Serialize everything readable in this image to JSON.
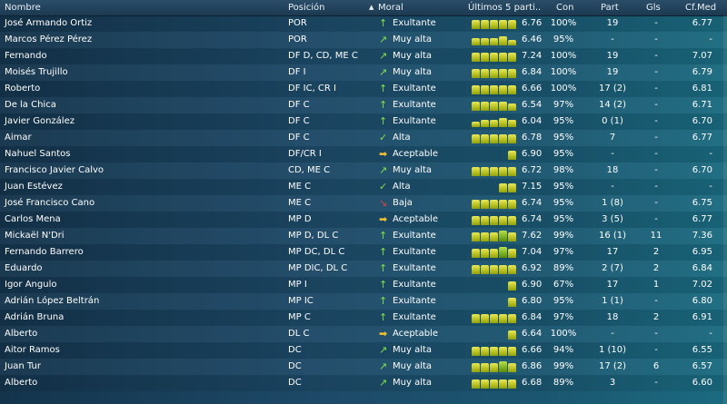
{
  "headers": {
    "nombre": "Nombre",
    "posicion": "Posición",
    "moral": "Moral",
    "ultimos": "Últimos 5 parti..",
    "con": "Con",
    "part": "Part",
    "gls": "Gls",
    "cfmed": "Cf.Med"
  },
  "colors": {
    "up": "#7ee04a",
    "slight_up": "#7ee04a",
    "flat": "#f0c030",
    "down": "#e04040"
  },
  "rows": [
    {
      "name": "José Armando Ortiz",
      "pos": "POR",
      "arrow": "up",
      "moral": "Exultante",
      "bars": [
        5,
        5,
        5,
        5,
        5
      ],
      "avg": "6.76",
      "con": "100%",
      "part": "19",
      "gls": "-",
      "cf": "6.77"
    },
    {
      "name": "Marcos Pérez Pérez",
      "pos": "POR",
      "arrow": "slight_up",
      "moral": "Muy alta",
      "bars": [
        4,
        4,
        4,
        5,
        3
      ],
      "avg": "6.46",
      "con": "95%",
      "part": "-",
      "gls": "-",
      "cf": "-"
    },
    {
      "name": "Fernando",
      "pos": "DF D, CD, ME C",
      "arrow": "slight_up",
      "moral": "Muy alta",
      "bars": [
        5,
        5,
        5,
        5,
        5
      ],
      "avg": "7.24",
      "con": "100%",
      "part": "19",
      "gls": "-",
      "cf": "7.07"
    },
    {
      "name": "Moisés Trujillo",
      "pos": "DF I",
      "arrow": "slight_up",
      "moral": "Muy alta",
      "bars": [
        5,
        5,
        5,
        5,
        5
      ],
      "avg": "6.84",
      "con": "100%",
      "part": "19",
      "gls": "-",
      "cf": "6.79"
    },
    {
      "name": "Roberto",
      "pos": "DF IC, CR I",
      "arrow": "up",
      "moral": "Exultante",
      "bars": [
        5,
        5,
        5,
        5,
        5
      ],
      "avg": "6.66",
      "con": "100%",
      "part": "17 (2)",
      "gls": "-",
      "cf": "6.81"
    },
    {
      "name": "De la Chica",
      "pos": "DF C",
      "arrow": "up",
      "moral": "Exultante",
      "bars": [
        5,
        5,
        5,
        5,
        4
      ],
      "avg": "6.54",
      "con": "97%",
      "part": "14 (2)",
      "gls": "-",
      "cf": "6.71"
    },
    {
      "name": "Javier González",
      "pos": "DF C",
      "arrow": "up",
      "moral": "Exultante",
      "bars": [
        3,
        4,
        4,
        5,
        4
      ],
      "avg": "6.04",
      "con": "95%",
      "part": "0 (1)",
      "gls": "-",
      "cf": "6.70"
    },
    {
      "name": "Aimar",
      "pos": "DF C",
      "arrow": "check",
      "moral": "Alta",
      "bars": [
        5,
        5,
        5,
        5,
        5
      ],
      "avg": "6.78",
      "con": "95%",
      "part": "7",
      "gls": "-",
      "cf": "6.77"
    },
    {
      "name": "Nahuel Santos",
      "pos": "DF/CR I",
      "arrow": "flat",
      "moral": "Aceptable",
      "bars": [
        0,
        0,
        0,
        0,
        5
      ],
      "avg": "6.90",
      "con": "95%",
      "part": "-",
      "gls": "-",
      "cf": "-"
    },
    {
      "name": "Francisco Javier Calvo",
      "pos": "CD, ME C",
      "arrow": "slight_up",
      "moral": "Muy alta",
      "bars": [
        5,
        5,
        5,
        5,
        5
      ],
      "avg": "6.72",
      "con": "98%",
      "part": "18",
      "gls": "-",
      "cf": "6.70"
    },
    {
      "name": "Juan Estévez",
      "pos": "ME C",
      "arrow": "check",
      "moral": "Alta",
      "bars": [
        0,
        0,
        0,
        5,
        5
      ],
      "avg": "7.15",
      "con": "95%",
      "part": "-",
      "gls": "-",
      "cf": "-"
    },
    {
      "name": "José Francisco Cano",
      "pos": "ME C",
      "arrow": "down",
      "moral": "Baja",
      "bars": [
        5,
        5,
        5,
        5,
        5
      ],
      "avg": "6.74",
      "con": "95%",
      "part": "1 (8)",
      "gls": "-",
      "cf": "6.75"
    },
    {
      "name": "Carlos Mena",
      "pos": "MP D",
      "arrow": "flat",
      "moral": "Aceptable",
      "bars": [
        5,
        5,
        5,
        5,
        5
      ],
      "avg": "6.74",
      "con": "95%",
      "part": "3 (5)",
      "gls": "-",
      "cf": "6.77"
    },
    {
      "name": "Mickaël N'Dri",
      "pos": "MP D, DL C",
      "arrow": "up",
      "moral": "Exultante",
      "bars": [
        5,
        5,
        5,
        6,
        5
      ],
      "avg": "7.62",
      "con": "99%",
      "part": "16 (1)",
      "gls": "11",
      "cf": "7.36"
    },
    {
      "name": "Fernando Barrero",
      "pos": "MP DC, DL C",
      "arrow": "up",
      "moral": "Exultante",
      "bars": [
        5,
        5,
        5,
        6,
        5
      ],
      "avg": "7.04",
      "con": "97%",
      "part": "17",
      "gls": "2",
      "cf": "6.95"
    },
    {
      "name": "Eduardo",
      "pos": "MP DIC, DL C",
      "arrow": "up",
      "moral": "Exultante",
      "bars": [
        5,
        5,
        5,
        5,
        5
      ],
      "avg": "6.92",
      "con": "89%",
      "part": "2 (7)",
      "gls": "2",
      "cf": "6.84"
    },
    {
      "name": "Igor Angulo",
      "pos": "MP I",
      "arrow": "up",
      "moral": "Exultante",
      "bars": [
        0,
        0,
        0,
        0,
        5
      ],
      "avg": "6.90",
      "con": "67%",
      "part": "17",
      "gls": "1",
      "cf": "7.02"
    },
    {
      "name": "Adrián López Beltrán",
      "pos": "MP IC",
      "arrow": "up",
      "moral": "Exultante",
      "bars": [
        0,
        0,
        0,
        0,
        5
      ],
      "avg": "6.80",
      "con": "95%",
      "part": "1 (1)",
      "gls": "-",
      "cf": "6.80"
    },
    {
      "name": "Adrián Bruna",
      "pos": "MP C",
      "arrow": "up",
      "moral": "Exultante",
      "bars": [
        5,
        5,
        5,
        5,
        5
      ],
      "avg": "6.84",
      "con": "97%",
      "part": "18",
      "gls": "2",
      "cf": "6.91"
    },
    {
      "name": "Alberto",
      "pos": "DL C",
      "arrow": "flat",
      "moral": "Aceptable",
      "bars": [
        0,
        0,
        0,
        0,
        5
      ],
      "avg": "6.64",
      "con": "100%",
      "part": "-",
      "gls": "-",
      "cf": "-"
    },
    {
      "name": "Aitor Ramos",
      "pos": "DC",
      "arrow": "slight_up",
      "moral": "Muy alta",
      "bars": [
        5,
        5,
        5,
        5,
        5
      ],
      "avg": "6.66",
      "con": "94%",
      "part": "1 (10)",
      "gls": "-",
      "cf": "6.55"
    },
    {
      "name": "Juan Tur",
      "pos": "DC",
      "arrow": "slight_up",
      "moral": "Muy alta",
      "bars": [
        5,
        5,
        5,
        6,
        5
      ],
      "avg": "6.86",
      "con": "99%",
      "part": "17 (2)",
      "gls": "6",
      "cf": "6.57"
    },
    {
      "name": "Alberto",
      "pos": "DC",
      "arrow": "slight_up",
      "moral": "Muy alta",
      "bars": [
        5,
        5,
        5,
        5,
        5
      ],
      "avg": "6.68",
      "con": "89%",
      "part": "3",
      "gls": "-",
      "cf": "6.60"
    }
  ]
}
